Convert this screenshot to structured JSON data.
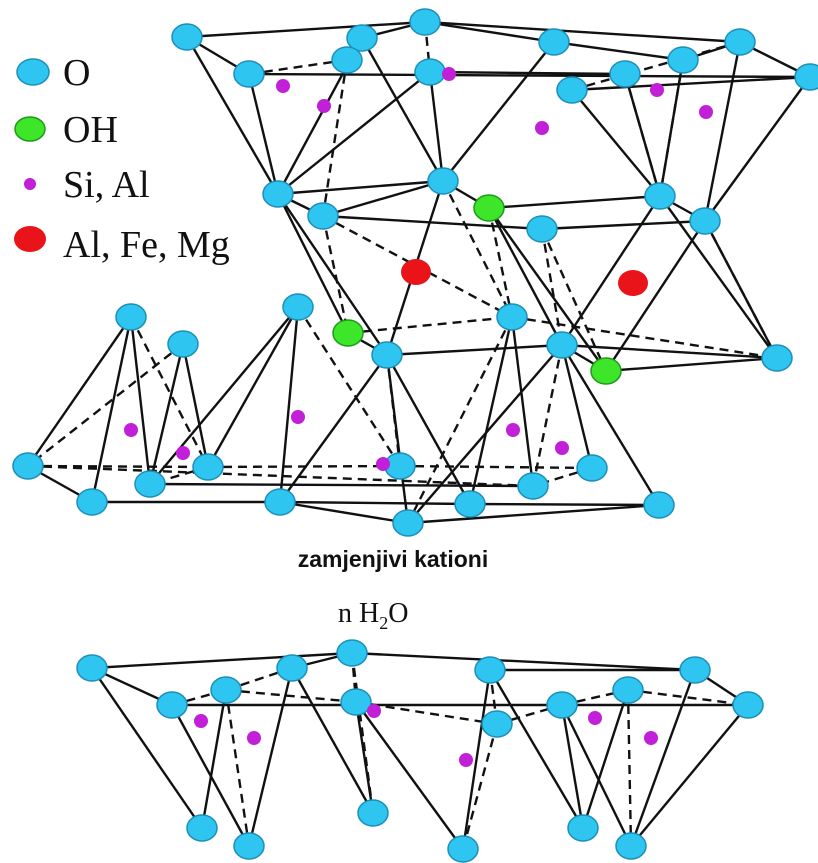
{
  "legend": [
    {
      "id": "o",
      "label": "O",
      "color": "#2ec6f0"
    },
    {
      "id": "oh",
      "label": "OH",
      "color": "#3ee62a"
    },
    {
      "id": "si",
      "label": "Si, Al",
      "color": "#c21fd8"
    },
    {
      "id": "al",
      "label": "Al, Fe, Mg",
      "color": "#e8141a"
    }
  ],
  "caption": "zamjenjivi kationi",
  "water": {
    "prefix": "n H",
    "sub": "2",
    "suffix": "O"
  },
  "colors": {
    "line": "#111111",
    "atom_stroke": "#1d8fb8"
  }
}
